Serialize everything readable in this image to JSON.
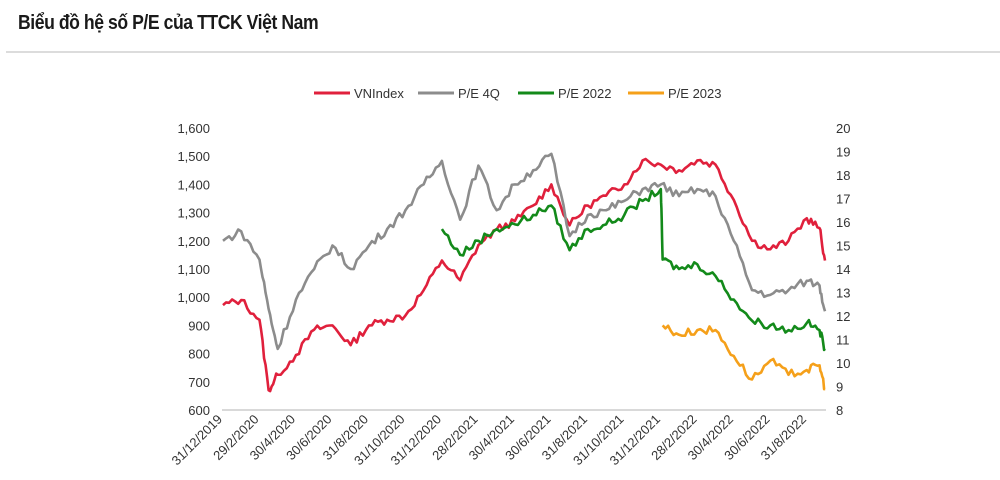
{
  "title": "Biểu đồ hệ số P/E của TTCK Việt Nam",
  "chart_data": {
    "type": "line",
    "title": "Biểu đồ hệ số P/E của TTCK Việt Nam",
    "legend_position": "top",
    "x_unit": "months since 31/12/2019",
    "x_tick_labels": [
      "31/12/2019",
      "29/2/2020",
      "30/4/2020",
      "30/6/2020",
      "31/8/2020",
      "31/10/2020",
      "31/12/2020",
      "28/2/2021",
      "30/4/2021",
      "30/6/2021",
      "31/8/2021",
      "31/10/2021",
      "31/12/2021",
      "28/2/2022",
      "30/4/2022",
      "30/6/2022",
      "31/8/2022"
    ],
    "xlim": [
      0,
      33
    ],
    "left_axis": {
      "ylim": [
        600,
        1600
      ],
      "ticks": [
        "600",
        "700",
        "800",
        "900",
        "1,000",
        "1,100",
        "1,200",
        "1,300",
        "1,400",
        "1,500",
        "1,600"
      ]
    },
    "right_axis": {
      "ylim": [
        8,
        20
      ],
      "ticks": [
        "8",
        "9",
        "10",
        "11",
        "12",
        "13",
        "14",
        "15",
        "16",
        "17",
        "18",
        "19",
        "20"
      ]
    },
    "series": [
      {
        "name": "VNIndex",
        "axis": "left",
        "color": "#e0203c",
        "x": [
          0,
          1,
          2,
          2.5,
          3,
          4,
          5,
          6,
          7,
          8,
          9,
          10,
          11,
          12,
          13,
          14,
          15,
          16,
          17,
          18,
          19,
          20,
          21,
          22,
          23,
          24,
          25,
          26,
          27,
          28,
          29,
          30,
          31,
          32,
          32.7,
          33
        ],
        "y": [
          972,
          990,
          920,
          670,
          725,
          795,
          885,
          900,
          830,
          900,
          920,
          935,
          1025,
          1130,
          1060,
          1185,
          1240,
          1270,
          1325,
          1400,
          1255,
          1325,
          1360,
          1400,
          1485,
          1470,
          1450,
          1485,
          1470,
          1345,
          1200,
          1170,
          1200,
          1280,
          1245,
          1130
        ]
      },
      {
        "name": "P/E 4Q",
        "axis": "right",
        "color": "#8c8c8c",
        "x": [
          0,
          1,
          2,
          2.5,
          3,
          4,
          5,
          6,
          7,
          8,
          9,
          10,
          11,
          12,
          13,
          14,
          15,
          16,
          17,
          18,
          19,
          20,
          21,
          22,
          23,
          24,
          25,
          26,
          27,
          28,
          29,
          30,
          31,
          32,
          32.7,
          33
        ],
        "y": [
          15.2,
          15.6,
          14.4,
          12.3,
          10.6,
          12.7,
          14.0,
          15.0,
          14.0,
          15.0,
          15.7,
          16.5,
          17.6,
          18.6,
          16.1,
          18.4,
          16.5,
          17.6,
          18.2,
          18.9,
          15.4,
          16.3,
          16.5,
          16.9,
          17.4,
          17.6,
          17.1,
          17.4,
          17.1,
          15.2,
          13.1,
          12.9,
          13.1,
          13.5,
          13.3,
          12.2
        ]
      },
      {
        "name": "P/E 2022",
        "axis": "right",
        "color": "#138a1a",
        "x": [
          12,
          13,
          14,
          15,
          16,
          17,
          18,
          19,
          20,
          21,
          22,
          23,
          24,
          24.1,
          25,
          26,
          27,
          28,
          29,
          30,
          31,
          32,
          32.7,
          33
        ],
        "y": [
          15.7,
          14.6,
          15.2,
          15.7,
          15.9,
          16.3,
          16.7,
          14.8,
          15.7,
          15.9,
          16.3,
          16.9,
          17.4,
          14.4,
          14.0,
          14.2,
          13.7,
          12.7,
          11.8,
          11.6,
          11.4,
          11.7,
          11.4,
          10.6
        ]
      },
      {
        "name": "P/E 2023",
        "axis": "right",
        "color": "#f5a01a",
        "x": [
          24.1,
          25,
          26,
          27,
          28,
          29,
          30,
          31,
          32,
          32.7,
          33
        ],
        "y": [
          11.6,
          11.2,
          11.4,
          11.4,
          10.3,
          9.3,
          10.1,
          9.5,
          9.7,
          9.9,
          8.9
        ]
      }
    ]
  }
}
